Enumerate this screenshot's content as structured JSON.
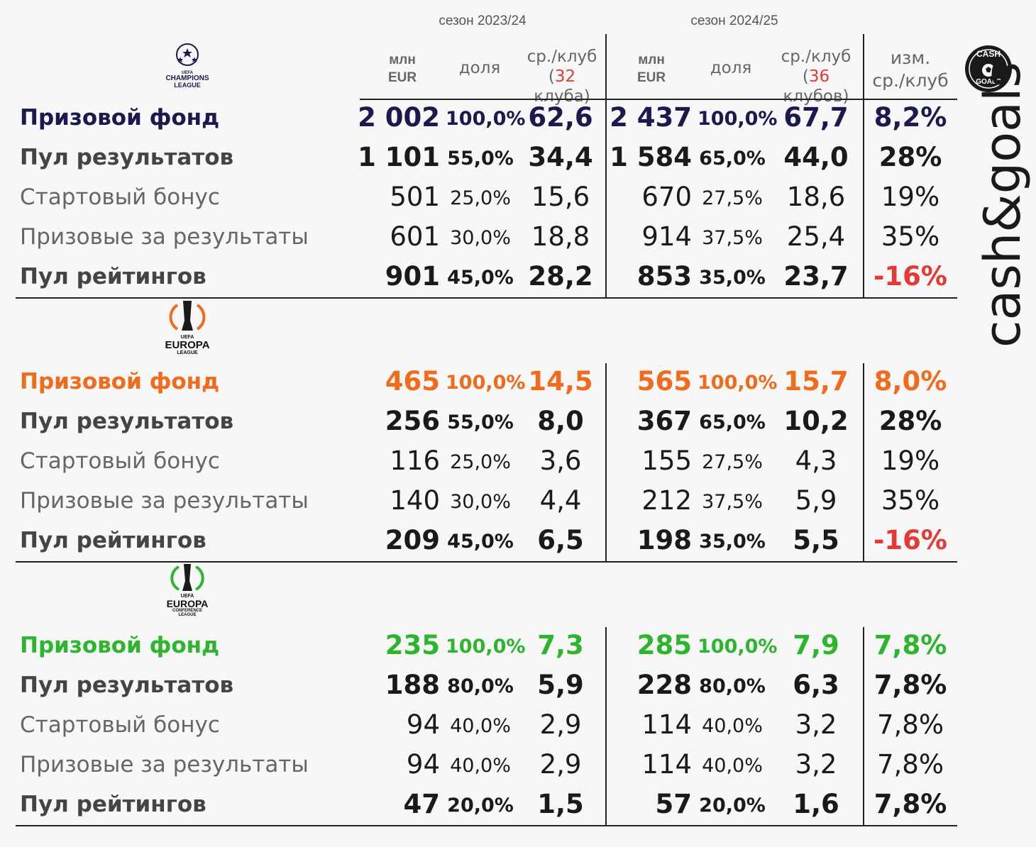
{
  "header": {
    "season_a": "сезон 2023/24",
    "season_b": "сезон 2024/25",
    "col_mln_1": "млн",
    "col_mln_2": "EUR",
    "col_share": "доля",
    "col_avg_1": "ср./клуб",
    "col_avg_a_open": "(",
    "col_avg_a_num": "32",
    "col_avg_a_rest": " клуба)",
    "col_avg_b_open": "(",
    "col_avg_b_num": "36",
    "col_avg_b_rest": " клубов)",
    "col_chg_1": "изм.",
    "col_chg_2": "ср./клуб"
  },
  "brand": {
    "vertical_text": "cash&goals",
    "logo_line1": "CASH",
    "logo_line2": "GOALS"
  },
  "colors": {
    "ucl": "#1a1a4e",
    "uel": "#f26a1b",
    "uecl": "#2db52d",
    "negative": "#e53935"
  },
  "sections": [
    {
      "id": "ucl",
      "logo_lines": [
        "UEFA",
        "CHAMPIONS",
        "LEAGUE"
      ],
      "rows": [
        {
          "label": "Призовой фонд",
          "a_val": "2 002",
          "a_pct": "100,0%",
          "a_avg": "62,6",
          "b_val": "2 437",
          "b_pct": "100,0%",
          "b_avg": "67,7",
          "chg": "8,2%"
        },
        {
          "label": "Пул результатов",
          "a_val": "1 101",
          "a_pct": "55,0%",
          "a_avg": "34,4",
          "b_val": "1 584",
          "b_pct": "65,0%",
          "b_avg": "44,0",
          "chg": "28%"
        },
        {
          "label": "Стартовый бонус",
          "a_val": "501",
          "a_pct": "25,0%",
          "a_avg": "15,6",
          "b_val": "670",
          "b_pct": "27,5%",
          "b_avg": "18,6",
          "chg": "19%"
        },
        {
          "label": "Призовые за результаты",
          "a_val": "601",
          "a_pct": "30,0%",
          "a_avg": "18,8",
          "b_val": "914",
          "b_pct": "37,5%",
          "b_avg": "25,4",
          "chg": "35%"
        },
        {
          "label": "Пул рейтингов",
          "a_val": "901",
          "a_pct": "45,0%",
          "a_avg": "28,2",
          "b_val": "853",
          "b_pct": "35,0%",
          "b_avg": "23,7",
          "chg": "-16%"
        }
      ]
    },
    {
      "id": "uel",
      "logo_lines": [
        "UEFA",
        "EUROPA",
        "LEAGUE"
      ],
      "rows": [
        {
          "label": "Призовой фонд",
          "a_val": "465",
          "a_pct": "100,0%",
          "a_avg": "14,5",
          "b_val": "565",
          "b_pct": "100,0%",
          "b_avg": "15,7",
          "chg": "8,0%"
        },
        {
          "label": "Пул результатов",
          "a_val": "256",
          "a_pct": "55,0%",
          "a_avg": "8,0",
          "b_val": "367",
          "b_pct": "65,0%",
          "b_avg": "10,2",
          "chg": "28%"
        },
        {
          "label": "Стартовый бонус",
          "a_val": "116",
          "a_pct": "25,0%",
          "a_avg": "3,6",
          "b_val": "155",
          "b_pct": "27,5%",
          "b_avg": "4,3",
          "chg": "19%"
        },
        {
          "label": "Призовые за результаты",
          "a_val": "140",
          "a_pct": "30,0%",
          "a_avg": "4,4",
          "b_val": "212",
          "b_pct": "37,5%",
          "b_avg": "5,9",
          "chg": "35%"
        },
        {
          "label": "Пул рейтингов",
          "a_val": "209",
          "a_pct": "45,0%",
          "a_avg": "6,5",
          "b_val": "198",
          "b_pct": "35,0%",
          "b_avg": "5,5",
          "chg": "-16%"
        }
      ]
    },
    {
      "id": "uecl",
      "logo_lines": [
        "UEFA",
        "EUROPA",
        "CONFERENCE",
        "LEAGUE"
      ],
      "rows": [
        {
          "label": "Призовой фонд",
          "a_val": "235",
          "a_pct": "100,0%",
          "a_avg": "7,3",
          "b_val": "285",
          "b_pct": "100,0%",
          "b_avg": "7,9",
          "chg": "7,8%"
        },
        {
          "label": "Пул результатов",
          "a_val": "188",
          "a_pct": "80,0%",
          "a_avg": "5,9",
          "b_val": "228",
          "b_pct": "80,0%",
          "b_avg": "6,3",
          "chg": "7,8%"
        },
        {
          "label": "Стартовый бонус",
          "a_val": "94",
          "a_pct": "40,0%",
          "a_avg": "2,9",
          "b_val": "114",
          "b_pct": "40,0%",
          "b_avg": "3,2",
          "chg": "7,8%"
        },
        {
          "label": "Призовые за результаты",
          "a_val": "94",
          "a_pct": "40,0%",
          "a_avg": "2,9",
          "b_val": "114",
          "b_pct": "40,0%",
          "b_avg": "3,2",
          "chg": "7,8%"
        },
        {
          "label": "Пул рейтингов",
          "a_val": "47",
          "a_pct": "20,0%",
          "a_avg": "1,5",
          "b_val": "57",
          "b_pct": "20,0%",
          "b_avg": "1,6",
          "chg": "7,8%"
        }
      ]
    }
  ]
}
